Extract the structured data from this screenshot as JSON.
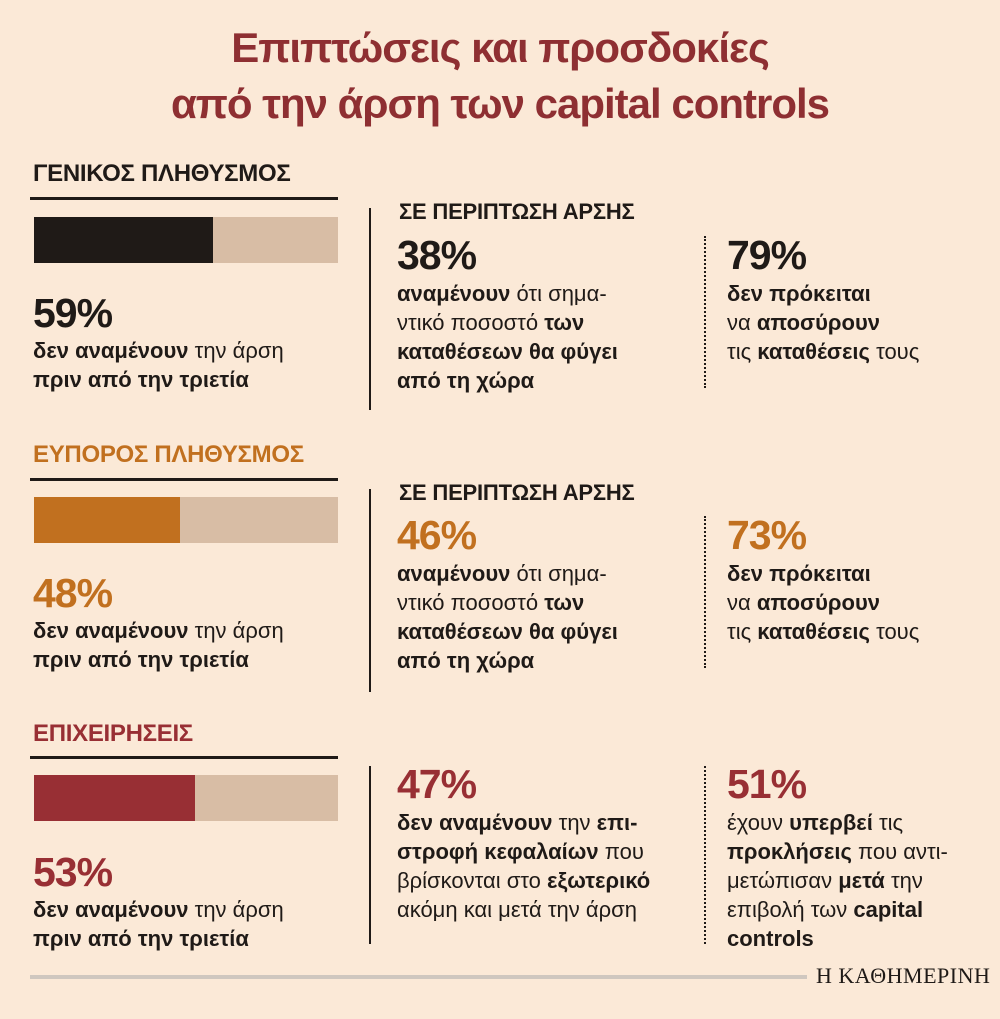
{
  "title": {
    "line1": "Επιπτώσεις και προσδοκίες",
    "line2": "από την άρση των capital controls"
  },
  "colors": {
    "title": "#8e2f32",
    "bar_background": "#d8bda5",
    "general": "#1f1a17",
    "wealthy": "#c1701f",
    "business": "#982f34",
    "page_background": "#fbe9d7"
  },
  "chart_data": {
    "type": "bar",
    "categories": [
      "ΓΕΝΙΚΟΣ ΠΛΗΘΥΣΜΟΣ",
      "ΕΥΠΟΡΟΣ ΠΛΗΘΥΣΜΟΣ",
      "ΕΠΙΧΕΙΡΗΣΕΙΣ"
    ],
    "values": [
      59,
      48,
      53
    ],
    "ylim": [
      0,
      100
    ],
    "orientation": "horizontal",
    "series": [
      {
        "values": [
          59,
          48,
          53
        ]
      }
    ]
  },
  "sections": {
    "general": {
      "heading": "ΓΕΝΙΚΟΣ ΠΛΗΘΥΣΜΟΣ",
      "bar_pct": "59%",
      "bar_text_bold": "δεν αναμένουν",
      "bar_text_rest": " την άρση",
      "bar_text_line2": "πριν από την τριετία",
      "subheading": "ΣΕ ΠΕΡΙΠΤΩΣΗ ΑΡΣΗΣ",
      "mid_pct": "38%",
      "mid_l1_bold": "αναμένουν",
      "mid_l1_rest": " ότι σημα-",
      "mid_l2_rest": "ντικό ποσοστό ",
      "mid_l2_bold": "των",
      "mid_l3_bold": "καταθέσεων θα φύγει",
      "mid_l4_bold": "από τη χώρα",
      "right_pct": "79%",
      "right_l1_bold": "δεν πρόκειται",
      "right_l2_rest": "να ",
      "right_l2_bold": "αποσύρουν",
      "right_l3_rest": "τις ",
      "right_l3_bold": "καταθέσεις",
      "right_l3_tail": " τους"
    },
    "wealthy": {
      "heading": "ΕΥΠΟΡΟΣ ΠΛΗΘΥΣΜΟΣ",
      "bar_pct": "48%",
      "bar_text_bold": "δεν αναμένουν",
      "bar_text_rest": " την άρση",
      "bar_text_line2": "πριν από την τριετία",
      "subheading": "ΣΕ ΠΕΡΙΠΤΩΣΗ ΑΡΣΗΣ",
      "mid_pct": "46%",
      "mid_l1_bold": "αναμένουν",
      "mid_l1_rest": " ότι σημα-",
      "mid_l2_rest": "ντικό ποσοστό ",
      "mid_l2_bold": "των",
      "mid_l3_bold": "καταθέσεων θα φύγει",
      "mid_l4_bold": "από τη χώρα",
      "right_pct": "73%",
      "right_l1_bold": "δεν πρόκειται",
      "right_l2_rest": "να ",
      "right_l2_bold": "αποσύρουν",
      "right_l3_rest": "τις ",
      "right_l3_bold": "καταθέσεις",
      "right_l3_tail": " τους"
    },
    "business": {
      "heading": "ΕΠΙΧΕΙΡΗΣΕΙΣ",
      "bar_pct": "53%",
      "bar_text_bold": "δεν αναμένουν",
      "bar_text_rest": " την άρση",
      "bar_text_line2": "πριν από την τριετία",
      "mid_pct": "47%",
      "mid_l1_bold": "δεν αναμένουν",
      "mid_l1_rest": " την ",
      "mid_l1_bold2": "επι-",
      "mid_l2_bold": "στροφή κεφαλαίων",
      "mid_l2_rest": " που",
      "mid_l3_rest": "βρίσκονται στο ",
      "mid_l3_bold": "εξωτερικό",
      "mid_l4_rest": "ακόμη και μετά την άρση",
      "right_pct": "51%",
      "right_l1_rest": "έχουν ",
      "right_l1_bold": "υπερβεί",
      "right_l1_tail": " τις",
      "right_l2_bold": "προκλήσεις",
      "right_l2_rest": " που αντι-",
      "right_l3_rest": "μετώπισαν ",
      "right_l3_bold": "μετά",
      "right_l3_tail": " την",
      "right_l4_rest": "επιβολή των ",
      "right_l4_bold": "capital",
      "right_l5_bold": "controls"
    }
  },
  "footer": {
    "logo": "Η ΚΑΘΗΜΕΡΙΝΗ"
  }
}
